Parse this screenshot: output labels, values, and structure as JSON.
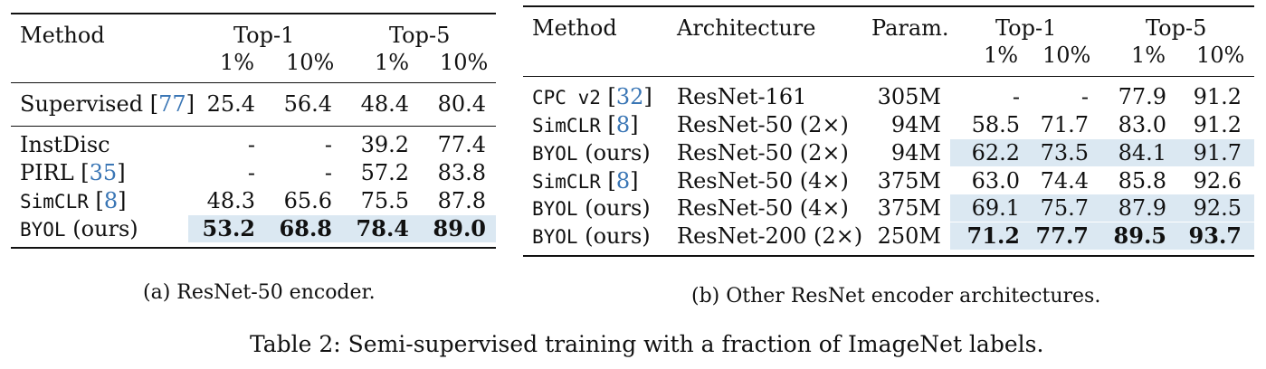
{
  "table_a": {
    "headers": {
      "method": "Method",
      "top1": "Top-1",
      "top5": "Top-5",
      "p1": "1%",
      "p10": "10%"
    },
    "rows": [
      {
        "method": "Supervised",
        "cite": "77",
        "mono": false,
        "vals": [
          "25.4",
          "56.4",
          "48.4",
          "80.4"
        ]
      },
      {
        "method": "InstDisc",
        "cite": "",
        "mono": false,
        "vals": [
          "-",
          "-",
          "39.2",
          "77.4"
        ]
      },
      {
        "method": "PIRL",
        "cite": "35",
        "mono": false,
        "vals": [
          "-",
          "-",
          "57.2",
          "83.8"
        ]
      },
      {
        "method": "SimCLR",
        "cite": "8",
        "mono": true,
        "vals": [
          "48.3",
          "65.6",
          "75.5",
          "87.8"
        ]
      },
      {
        "method": "BYOL",
        "suffix": "(ours)",
        "cite": "",
        "mono": true,
        "vals": [
          "53.2",
          "68.8",
          "78.4",
          "89.0"
        ]
      }
    ],
    "caption": "(a) ResNet-50 encoder."
  },
  "table_b": {
    "headers": {
      "method": "Method",
      "arch": "Architecture",
      "param": "Param.",
      "top1": "Top-1",
      "top5": "Top-5",
      "p1": "1%",
      "p10": "10%"
    },
    "rows": [
      {
        "method": "CPC v2",
        "cite": "32",
        "arch": "ResNet-161",
        "param": "305M",
        "vals": [
          "-",
          "-",
          "77.9",
          "91.2"
        ]
      },
      {
        "method": "SimCLR",
        "cite": "8",
        "arch": "ResNet-50 (2×)",
        "param": "94M",
        "vals": [
          "58.5",
          "71.7",
          "83.0",
          "91.2"
        ]
      },
      {
        "method": "BYOL",
        "suffix": "(ours)",
        "cite": "",
        "arch": "ResNet-50 (2×)",
        "param": "94M",
        "vals": [
          "62.2",
          "73.5",
          "84.1",
          "91.7"
        ]
      },
      {
        "method": "SimCLR",
        "cite": "8",
        "arch": "ResNet-50 (4×)",
        "param": "375M",
        "vals": [
          "63.0",
          "74.4",
          "85.8",
          "92.6"
        ]
      },
      {
        "method": "BYOL",
        "suffix": "(ours)",
        "cite": "",
        "arch": "ResNet-50 (4×)",
        "param": "375M",
        "vals": [
          "69.1",
          "75.7",
          "87.9",
          "92.5"
        ]
      },
      {
        "method": "BYOL",
        "suffix": "(ours)",
        "cite": "",
        "arch": "ResNet-200 (2×)",
        "param": "250M",
        "vals": [
          "71.2",
          "77.7",
          "89.5",
          "93.7"
        ]
      }
    ],
    "caption": "(b) Other ResNet encoder architectures."
  },
  "main_caption": "Table 2: Semi-supervised training with a fraction of ImageNet labels.",
  "colors": {
    "highlight": "#dbe8f2",
    "citation": "#3a76b5"
  }
}
